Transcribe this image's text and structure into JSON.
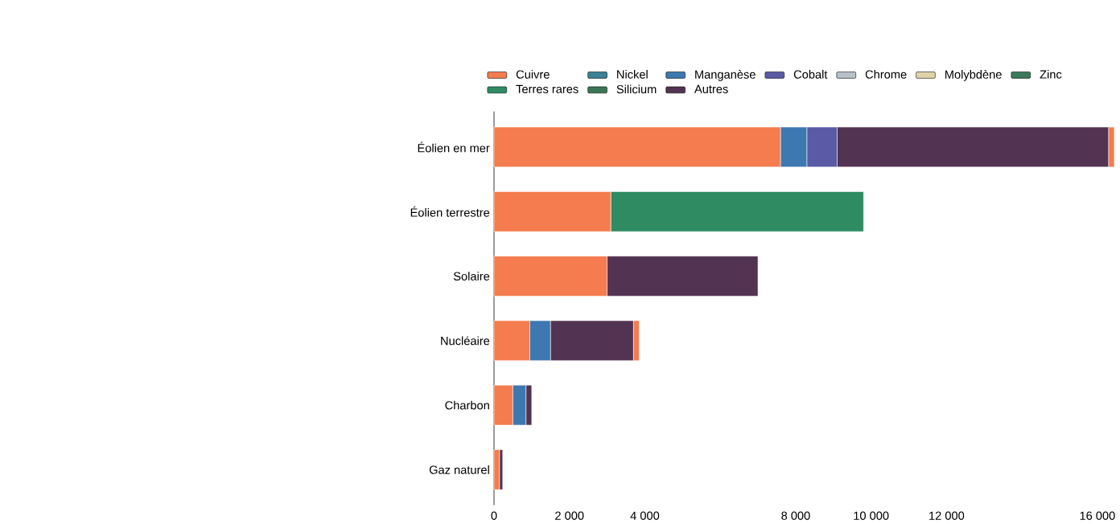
{
  "chart_data": {
    "type": "bar",
    "orientation": "horizontal",
    "stacked": true,
    "categories": [
      "Éolien en mer",
      "Éolien terrestre",
      "Solaire",
      "Nucléaire",
      "Charbon",
      "Gaz naturel"
    ],
    "series": [
      {
        "name": "Cuivre",
        "color": "#f47c4e",
        "values": [
          7600,
          3100,
          3000,
          950,
          500,
          150
        ]
      },
      {
        "name": "Nickel",
        "color": "#3b8297",
        "values": [
          null,
          null,
          null,
          null,
          null,
          null
        ]
      },
      {
        "name": "Manganèse",
        "color": "#3d78b0",
        "values": [
          700,
          null,
          null,
          550,
          350,
          null
        ]
      },
      {
        "name": "Cobalt",
        "color": "#5a5aa6",
        "values": [
          800,
          null,
          null,
          null,
          null,
          null
        ]
      },
      {
        "name": "Chrome",
        "color": "#b8c0c8",
        "values": [
          null,
          null,
          null,
          null,
          null,
          null
        ]
      },
      {
        "name": "Molybdène",
        "color": "#e0d2a8",
        "values": [
          null,
          null,
          null,
          null,
          null,
          null
        ]
      },
      {
        "name": "Zinc",
        "color": "#3a7a5a",
        "values": [
          null,
          null,
          null,
          null,
          null,
          null
        ]
      },
      {
        "name": "Terres rares",
        "color": "#2e8b62",
        "values": [
          null,
          6700,
          null,
          null,
          null,
          null
        ]
      },
      {
        "name": "Silicium",
        "color": "#3a7555",
        "values": [
          null,
          null,
          null,
          null,
          null,
          null
        ]
      },
      {
        "name": "Autres",
        "color": "#533352",
        "values": [
          7200,
          null,
          4000,
          2200,
          150,
          80
        ]
      },
      {
        "color": "#f47c4e",
        "values": [
          150,
          null,
          null,
          150,
          null,
          null
        ]
      }
    ],
    "xlim": [
      0,
      16600
    ],
    "xticks": [
      0,
      {
        "value": 2000,
        "label": "2 000"
      },
      {
        "value": 4000,
        "label": "4 000"
      },
      {
        "value": 8000,
        "label": "8 000"
      },
      {
        "value": 10000,
        "label": "10 000"
      },
      {
        "value": 12000,
        "label": "12 000"
      },
      {
        "value": 16000,
        "label": "16 000"
      }
    ],
    "grid": false,
    "legend": "top"
  }
}
